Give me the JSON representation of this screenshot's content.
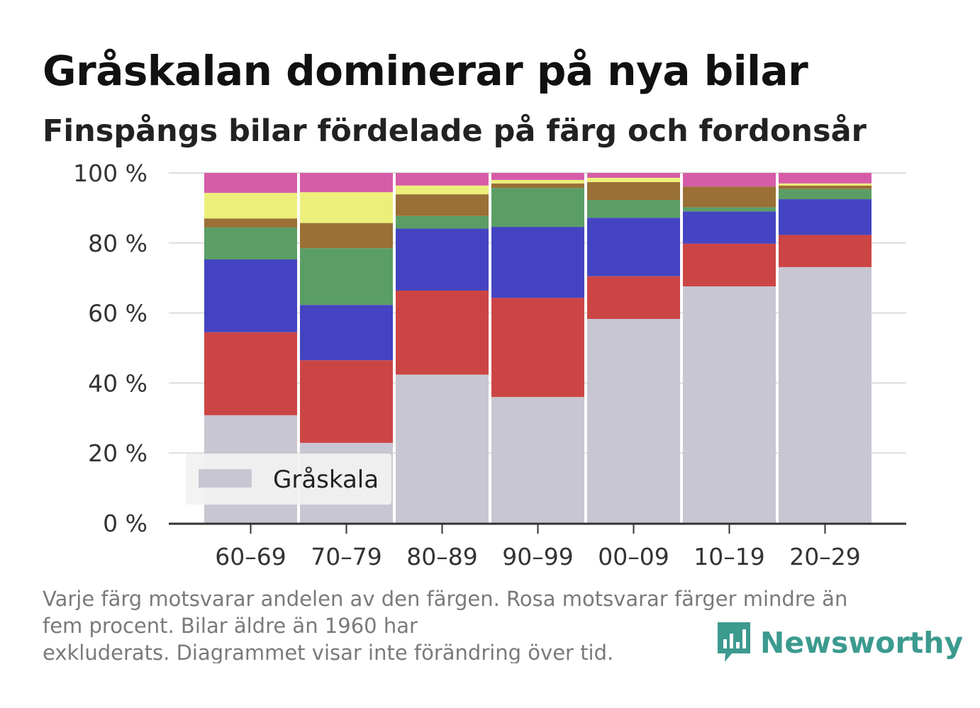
{
  "header": {
    "title": "Gråskalan dominerar på nya bilar",
    "subtitle": "Finspångs bilar fördelade på färg och fordonsår"
  },
  "footnote": {
    "line1": "Varje färg motsvarar andelen av den färgen. Rosa motsvarar färger mindre än",
    "line2": "fem procent. Bilar äldre än 1960 har",
    "line3": "exkluderats. Diagrammet visar inte förändring över tid."
  },
  "brand": {
    "name": "Newsworthy",
    "icon": "newsworthy-logo-icon",
    "color": "#3c9a8f"
  },
  "legend": {
    "label": "Gråskala"
  },
  "chart_data": {
    "type": "bar",
    "stacked": true,
    "title": "Gråskalan dominerar på nya bilar",
    "subtitle": "Finspångs bilar fördelade på färg och fordonsår",
    "xlabel": "",
    "ylabel": "",
    "categories": [
      "60–69",
      "70–79",
      "80–89",
      "90–99",
      "00–09",
      "10–19",
      "20–29"
    ],
    "ylim": [
      0,
      100
    ],
    "yticks": [
      0,
      20,
      40,
      60,
      80,
      100
    ],
    "ytick_labels": [
      "0 %",
      "20 %",
      "40 %",
      "60 %",
      "80 %",
      "100 %"
    ],
    "grid": true,
    "legend_position": "bottom-left",
    "series": [
      {
        "name": "Gråskala",
        "color": "#c8c6d2",
        "values": [
          30.8,
          22.9,
          42.4,
          36.0,
          58.3,
          67.6,
          73.1
        ]
      },
      {
        "color": "#cc4545",
        "values": [
          23.7,
          23.6,
          24.0,
          28.3,
          12.2,
          12.2,
          9.2
        ]
      },
      {
        "color": "#4444c2",
        "values": [
          20.8,
          15.8,
          17.7,
          20.3,
          16.7,
          9.2,
          10.2
        ]
      },
      {
        "color": "#5a9e66",
        "values": [
          9.1,
          16.2,
          3.6,
          11.1,
          5.1,
          1.2,
          2.9
        ]
      },
      {
        "color": "#9a7036",
        "values": [
          2.6,
          7.2,
          6.2,
          1.3,
          5.1,
          5.9,
          1.0
        ]
      },
      {
        "color": "#ecf07a",
        "values": [
          7.3,
          8.8,
          2.5,
          1.0,
          1.2,
          0.0,
          0.6
        ]
      },
      {
        "color": "#d65ca8",
        "values": [
          5.7,
          5.5,
          3.6,
          2.0,
          1.4,
          3.9,
          3.0
        ]
      }
    ]
  }
}
